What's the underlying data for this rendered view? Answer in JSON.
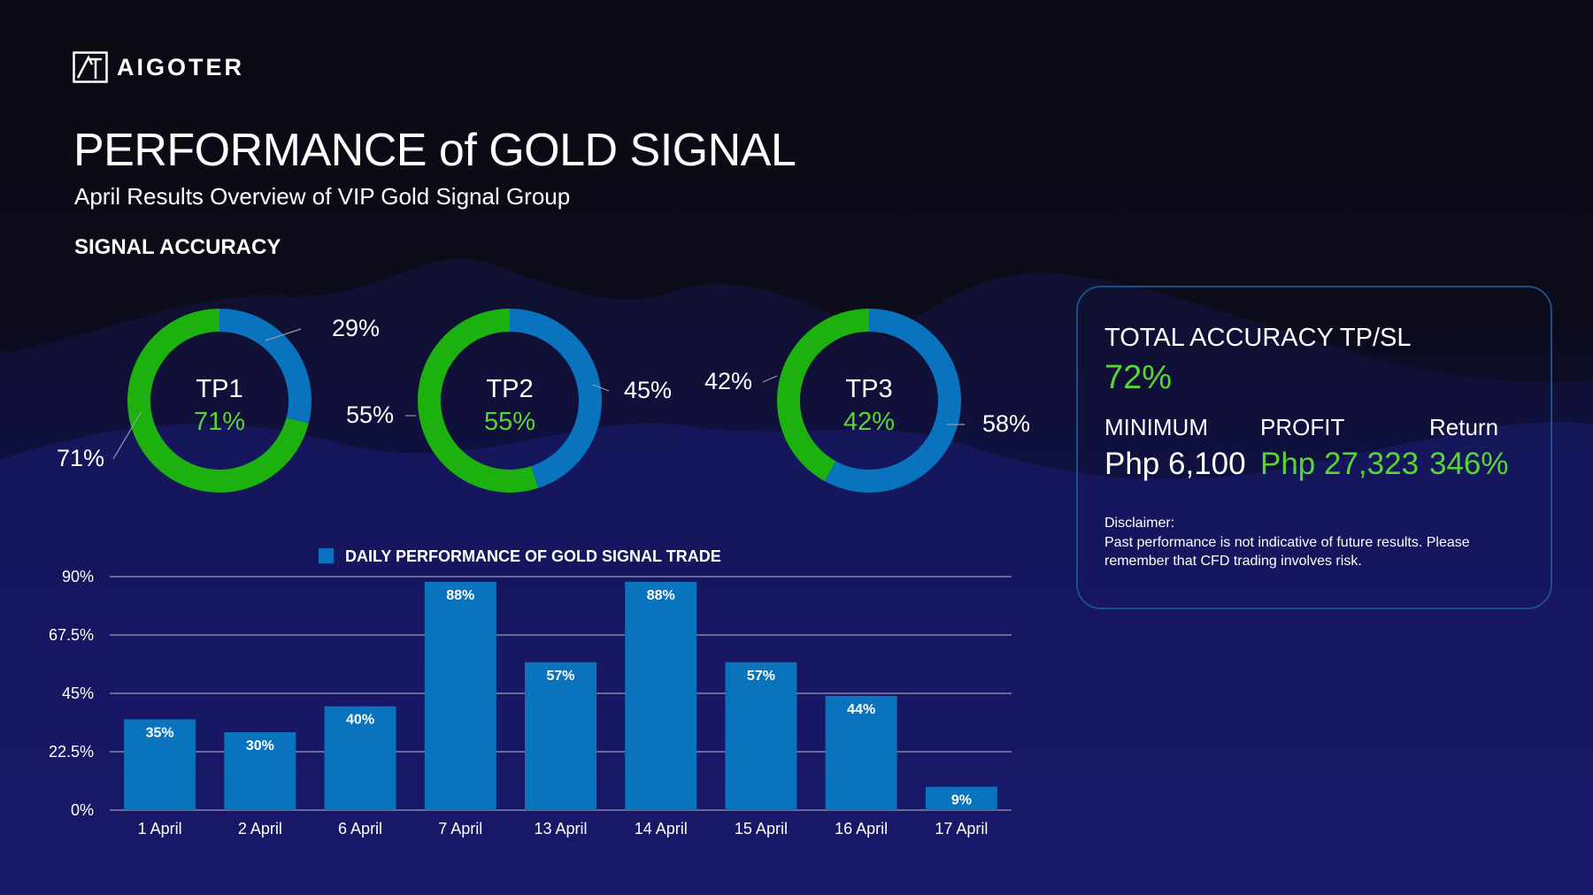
{
  "brand": {
    "name": "AIGOTER"
  },
  "header": {
    "title": "PERFORMANCE of GOLD SIGNAL",
    "subtitle": "April Results Overview of VIP Gold Signal Group",
    "section": "SIGNAL ACCURACY"
  },
  "colors": {
    "green": "#1db10f",
    "blue": "#0a73bd",
    "accent_text": "#59d436",
    "gridline": "#bcbcd0"
  },
  "chart_data": [
    {
      "type": "pie",
      "donut": true,
      "center_label": "TP1",
      "center_value": "71%",
      "slices": [
        {
          "label": "29%",
          "value": 29,
          "color": "#0a73bd"
        },
        {
          "label": "71%",
          "value": 71,
          "color": "#1db10f"
        }
      ]
    },
    {
      "type": "pie",
      "donut": true,
      "center_label": "TP2",
      "center_value": "55%",
      "slices": [
        {
          "label": "45%",
          "value": 45,
          "color": "#0a73bd"
        },
        {
          "label": "55%",
          "value": 55,
          "color": "#1db10f"
        }
      ]
    },
    {
      "type": "pie",
      "donut": true,
      "center_label": "TP3",
      "center_value": "42%",
      "slices": [
        {
          "label": "58%",
          "value": 58,
          "color": "#0a73bd"
        },
        {
          "label": "42%",
          "value": 42,
          "color": "#1db10f"
        }
      ]
    },
    {
      "type": "bar",
      "legend": "DAILY PERFORMANCE OF GOLD SIGNAL TRADE",
      "legend_position": "top",
      "categories": [
        "1 April",
        "2 April",
        "6 April",
        "7 April",
        "13 April",
        "14 April",
        "15 April",
        "16 April",
        "17 April"
      ],
      "values": [
        35,
        30,
        40,
        88,
        57,
        88,
        57,
        44,
        9
      ],
      "data_labels": [
        "35%",
        "30%",
        "40%",
        "88%",
        "57%",
        "88%",
        "57%",
        "44%",
        "9%"
      ],
      "ylim": [
        0,
        90
      ],
      "yticks": [
        0,
        22.5,
        45,
        67.5,
        90
      ],
      "ytick_labels": [
        "0%",
        "22.5%",
        "45%",
        "67.5%",
        "90%"
      ],
      "grid": true,
      "color": "#0a73bd"
    }
  ],
  "summary": {
    "accuracy_label": "TOTAL ACCURACY TP/SL",
    "accuracy_value": "72%",
    "minimum_label": "MINIMUM",
    "minimum_value": "Php 6,100",
    "profit_label": "PROFIT",
    "profit_value": "Php 27,323",
    "return_label": "Return",
    "return_value": "346%",
    "disclaimer_label": "Disclaimer:",
    "disclaimer_text": "Past performance is not indicative of future results. Please remember that CFD trading involves risk."
  }
}
